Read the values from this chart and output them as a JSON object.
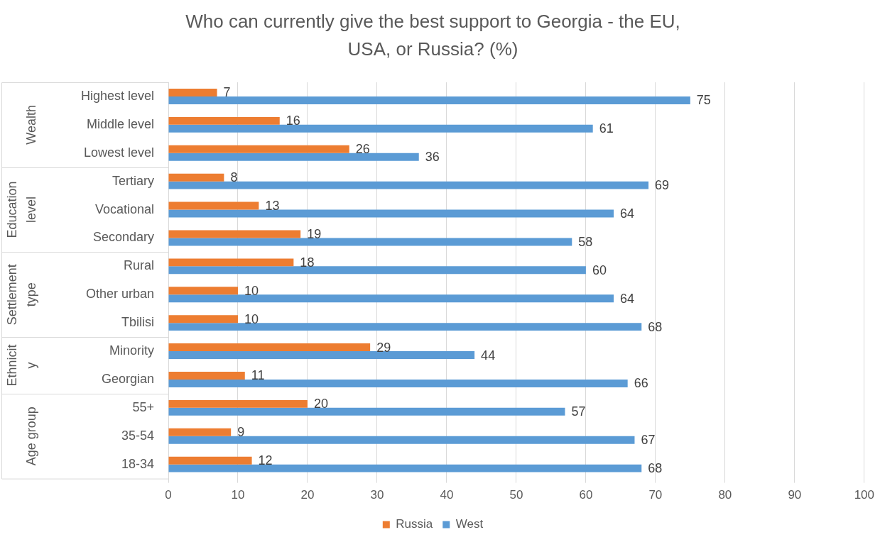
{
  "chart_data": {
    "type": "bar",
    "orientation": "horizontal",
    "title": "Who can currently give the best support to Georgia - the EU, USA, or Russia? (%)",
    "categories": [
      "Highest level",
      "Middle level",
      "Lowest level",
      "Tertiary",
      "Vocational",
      "Secondary",
      "Rural",
      "Other urban",
      "Tbilisi",
      "Minority",
      "Georgian",
      "55+",
      "35-54",
      "18-34"
    ],
    "series": [
      {
        "name": "Russia",
        "color": "#ed7d31",
        "values": [
          7,
          16,
          26,
          8,
          13,
          19,
          18,
          10,
          10,
          29,
          11,
          20,
          9,
          12
        ]
      },
      {
        "name": "West",
        "color": "#5b9bd5",
        "values": [
          75,
          61,
          36,
          69,
          64,
          58,
          60,
          64,
          68,
          44,
          66,
          57,
          67,
          68
        ]
      }
    ],
    "xlim": [
      0,
      100
    ],
    "xticks": [
      0,
      10,
      20,
      30,
      40,
      50,
      60,
      70,
      80,
      90,
      100
    ],
    "grid": "x",
    "legend": "bottom",
    "data_labels": true,
    "annotations": [
      "Wealth",
      "Education level",
      "Settlement type",
      "Ethnicity",
      "Age group"
    ]
  }
}
